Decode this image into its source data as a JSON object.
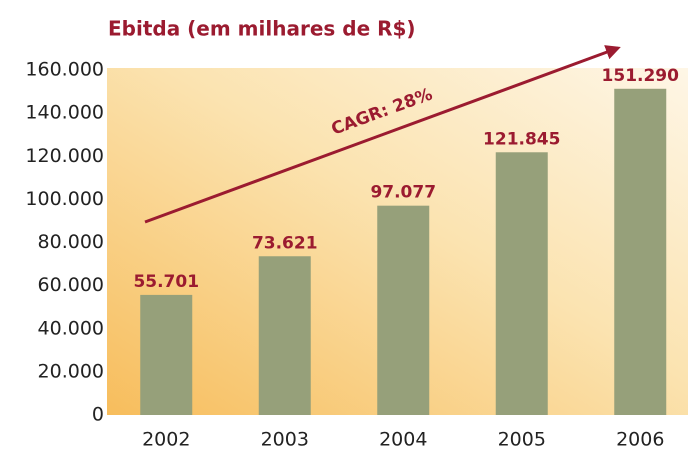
{
  "chart_data": {
    "type": "bar",
    "title": "Ebitda (em milhares de R$)",
    "categories": [
      "2002",
      "2003",
      "2004",
      "2005",
      "2006"
    ],
    "values": [
      55701,
      73621,
      97077,
      121845,
      151290
    ],
    "value_labels": [
      "55.701",
      "73.621",
      "97.077",
      "121.845",
      "151.290"
    ],
    "color": "#96a07a",
    "ylim": [
      0,
      160000
    ],
    "yticks": [
      0,
      {
        "value": 20000,
        "label": "20.000"
      },
      {
        "value": 40000,
        "label": "40.000"
      },
      {
        "value": 60000,
        "label": "60.000"
      },
      {
        "value": 80000,
        "label": "80.000"
      },
      {
        "value": 100000,
        "label": "100.000"
      },
      {
        "value": 120000,
        "label": "120.000"
      },
      {
        "value": 140000,
        "label": "140.000"
      },
      {
        "value": 160000,
        "label": "160.000"
      }
    ],
    "annotation": "CAGR: 28%",
    "grid": false
  }
}
